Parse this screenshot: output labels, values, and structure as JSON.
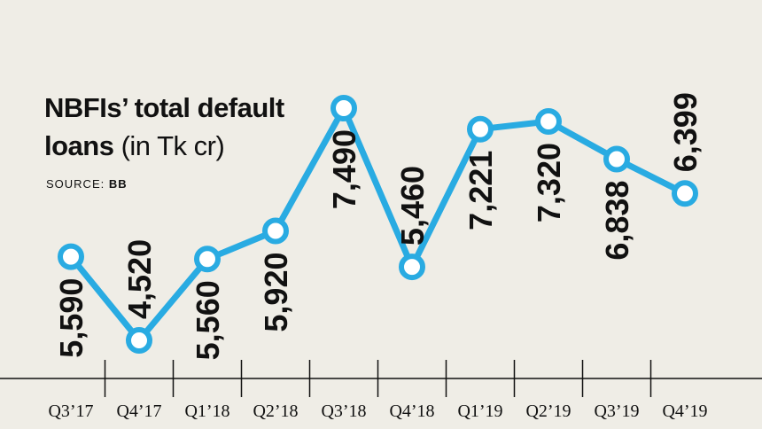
{
  "header": {
    "title_bold_1": "NBFIs’ total default",
    "title_bold_2": "loans",
    "title_light": "(in Tk cr)",
    "source_label": "SOURCE:",
    "source_value": "BB"
  },
  "colors": {
    "line": "#29abe2",
    "marker_fill": "#ffffff",
    "background": "#efede6",
    "text": "#111111"
  },
  "chart_data": {
    "type": "line",
    "title": "NBFIs’ total default loans (in Tk cr)",
    "categories": [
      "Q3’17",
      "Q4’17",
      "Q1’18",
      "Q2’18",
      "Q3’18",
      "Q4’18",
      "Q1’19",
      "Q2’19",
      "Q3’19",
      "Q4’19"
    ],
    "series": [
      {
        "values": [
          5590,
          4520,
          5560,
          5920,
          7490,
          5460,
          7221,
          7320,
          6838,
          6399
        ]
      }
    ],
    "data_labels": [
      "5,590",
      "4,520",
      "5,560",
      "5,920",
      "7,490",
      "5,460",
      "7,221",
      "7,320",
      "6,838",
      "6,399"
    ],
    "label_side": [
      "below",
      "above",
      "below",
      "below",
      "below",
      "above",
      "below",
      "below",
      "below",
      "above"
    ],
    "grid": false,
    "legend": "none"
  }
}
